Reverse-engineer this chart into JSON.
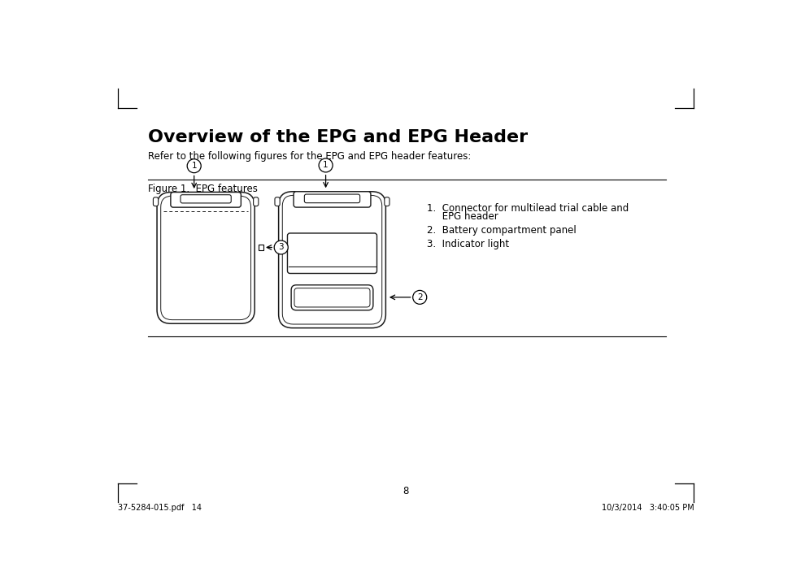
{
  "bg_color": "#ffffff",
  "title": "Overview of the EPG and EPG Header",
  "subtitle": "Refer to the following figures for the EPG and EPG header features:",
  "figure_label": "Figure 1.  EPG features",
  "list_item1_line1": "1.  Connector for multilead trial cable and",
  "list_item1_line2": "     EPG header",
  "list_item2": "2.  Battery compartment panel",
  "list_item3": "3.  Indicator light",
  "page_number": "8",
  "footer_left": "37-5284-015.pdf   14",
  "footer_right": "10/3/2014   3:40:05 PM",
  "title_fontsize": 16,
  "subtitle_fontsize": 8.5,
  "figure_label_fontsize": 8.5,
  "list_fontsize": 8.5,
  "footer_fontsize": 7,
  "page_num_fontsize": 8.5,
  "text_color": "#000000",
  "bg_color2": "#ffffff"
}
